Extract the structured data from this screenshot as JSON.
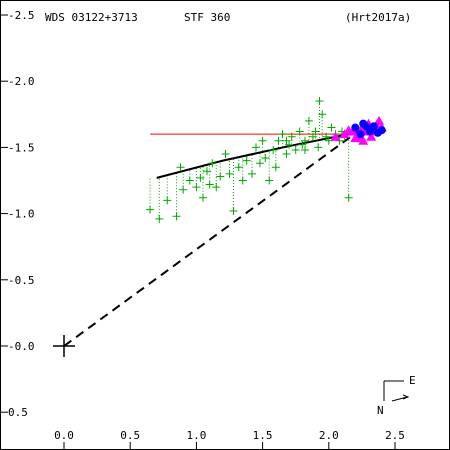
{
  "header": {
    "left": "WDS 03122+3713",
    "center": "STF 360",
    "right": "(Hrt2017a)"
  },
  "compass": {
    "east": "E",
    "north": "N"
  },
  "colors": {
    "frame": "#000000",
    "observations": "#00aa00",
    "speckle": "#ff00ff",
    "interferometric": "#0000ff",
    "reference_line": "#ff0000",
    "orbit": "#000000"
  },
  "chart_data": {
    "type": "scatter",
    "title": "",
    "xlabel": "",
    "ylabel": "",
    "xlim": [
      -0.2,
      2.85
    ],
    "ylim": [
      -0.78,
      2.53
    ],
    "y_inverted": true,
    "x_ticks": [
      "0.0",
      "0.5",
      "1.0",
      "1.5",
      "2.0",
      "2.5"
    ],
    "x_tick_values": [
      0,
      0.5,
      1.0,
      1.5,
      2.0,
      2.5
    ],
    "y_ticks": [
      "-2.5",
      "-2.0",
      "-1.5",
      "-1.0",
      "-0.5",
      "-0.0",
      "0.5"
    ],
    "y_tick_values": [
      -2.5,
      -2.0,
      -1.5,
      -1.0,
      -0.5,
      0.0,
      0.5
    ],
    "primary_star": [
      0,
      0
    ],
    "series": [
      {
        "marker": "plus",
        "color": "#00aa00",
        "points": [
          [
            0.65,
            -1.03
          ],
          [
            0.72,
            -0.96
          ],
          [
            0.78,
            -1.1
          ],
          [
            0.85,
            -0.98
          ],
          [
            0.88,
            -1.35
          ],
          [
            0.9,
            -1.18
          ],
          [
            0.95,
            -1.25
          ],
          [
            1.0,
            -1.2
          ],
          [
            1.03,
            -1.27
          ],
          [
            1.05,
            -1.12
          ],
          [
            1.08,
            -1.32
          ],
          [
            1.1,
            -1.22
          ],
          [
            1.12,
            -1.38
          ],
          [
            1.15,
            -1.2
          ],
          [
            1.18,
            -1.28
          ],
          [
            1.22,
            -1.45
          ],
          [
            1.25,
            -1.3
          ],
          [
            1.28,
            -1.02
          ],
          [
            1.32,
            -1.35
          ],
          [
            1.35,
            -1.25
          ],
          [
            1.38,
            -1.4
          ],
          [
            1.42,
            -1.3
          ],
          [
            1.45,
            -1.5
          ],
          [
            1.48,
            -1.38
          ],
          [
            1.5,
            -1.55
          ],
          [
            1.52,
            -1.42
          ],
          [
            1.55,
            -1.25
          ],
          [
            1.58,
            -1.48
          ],
          [
            1.6,
            -1.35
          ],
          [
            1.62,
            -1.55
          ],
          [
            1.65,
            -1.6
          ],
          [
            1.68,
            -1.45
          ],
          [
            1.7,
            -1.52
          ],
          [
            1.72,
            -1.58
          ],
          [
            1.75,
            -1.48
          ],
          [
            1.78,
            -1.62
          ],
          [
            1.8,
            -1.52
          ],
          [
            1.82,
            -1.55
          ],
          [
            1.85,
            -1.7
          ],
          [
            1.88,
            -1.58
          ],
          [
            1.9,
            -1.62
          ],
          [
            1.92,
            -1.5
          ],
          [
            1.95,
            -1.75
          ],
          [
            1.98,
            -1.58
          ],
          [
            2.0,
            -1.55
          ],
          [
            2.02,
            -1.65
          ],
          [
            2.05,
            -1.6
          ],
          [
            2.08,
            -1.55
          ],
          [
            2.1,
            -1.62
          ],
          [
            2.12,
            -1.58
          ],
          [
            2.15,
            -1.12
          ],
          [
            1.93,
            -1.85
          ],
          [
            1.82,
            -1.48
          ],
          [
            1.68,
            -1.55
          ]
        ]
      },
      {
        "marker": "triangle",
        "color": "#ff00ff",
        "points": [
          [
            2.05,
            -1.58
          ],
          [
            2.12,
            -1.6
          ],
          [
            2.18,
            -1.62
          ],
          [
            2.22,
            -1.58
          ],
          [
            2.25,
            -1.65
          ],
          [
            2.28,
            -1.62
          ],
          [
            2.3,
            -1.68
          ],
          [
            2.33,
            -1.65
          ],
          [
            2.35,
            -1.62
          ],
          [
            2.38,
            -1.7
          ],
          [
            2.32,
            -1.58
          ],
          [
            2.26,
            -1.55
          ],
          [
            2.2,
            -1.57
          ],
          [
            2.15,
            -1.63
          ],
          [
            2.4,
            -1.65
          ],
          [
            2.36,
            -1.67
          ]
        ]
      },
      {
        "marker": "circle",
        "color": "#0000ff",
        "points": [
          [
            2.2,
            -1.65
          ],
          [
            2.24,
            -1.6
          ],
          [
            2.28,
            -1.66
          ],
          [
            2.31,
            -1.62
          ],
          [
            2.34,
            -1.66
          ],
          [
            2.37,
            -1.61
          ],
          [
            2.4,
            -1.63
          ],
          [
            2.26,
            -1.68
          ]
        ]
      }
    ],
    "orbit_arc": [
      [
        0.7,
        -1.27
      ],
      [
        1.2,
        -1.4
      ],
      [
        1.7,
        -1.51
      ],
      [
        2.1,
        -1.59
      ],
      [
        2.38,
        -1.65
      ]
    ],
    "primary_link": [
      [
        0,
        0
      ],
      [
        2.22,
        -1.62
      ]
    ],
    "reference_line": {
      "y": -1.6,
      "x_start": 0.65,
      "x_end": 2.22
    }
  }
}
